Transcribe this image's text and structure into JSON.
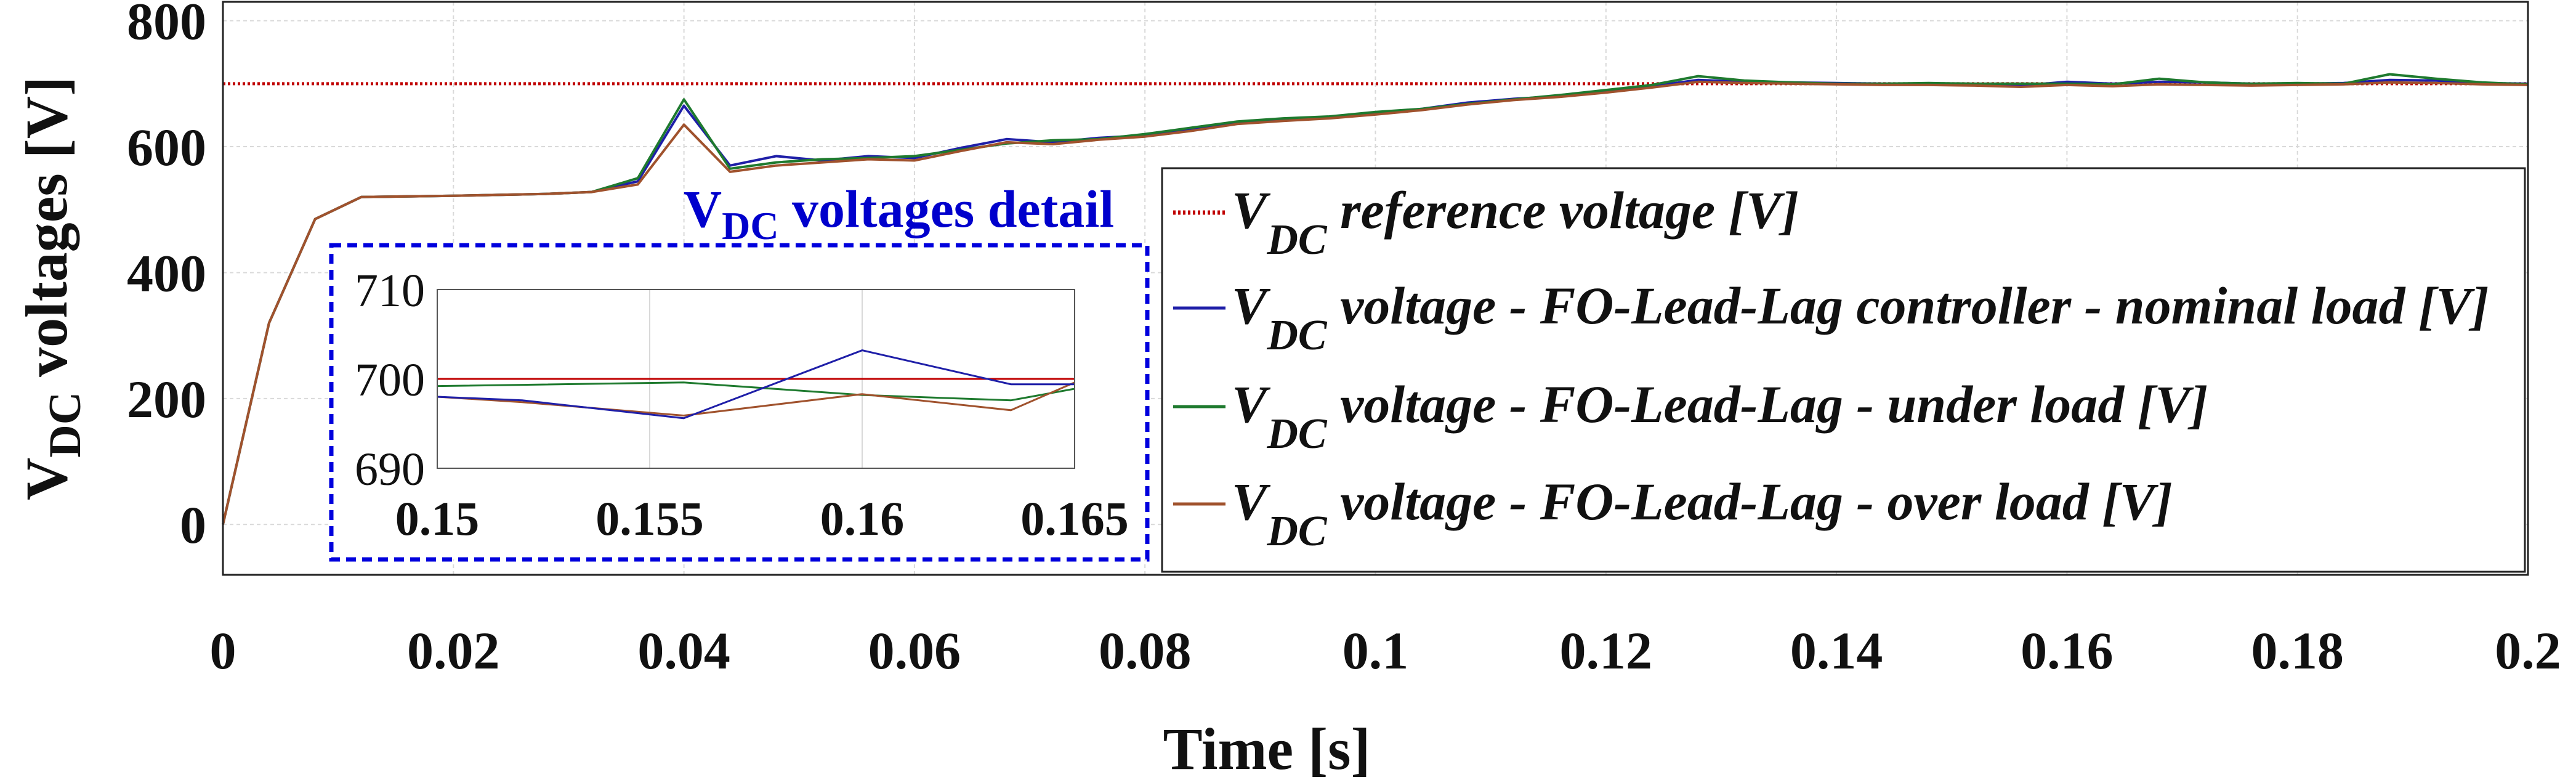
{
  "colors": {
    "reference": "#c00000",
    "nominal": "#1f1fa8",
    "under": "#1e7a2e",
    "over": "#a0522d",
    "inset_frame": "#0000dd",
    "inset_title": "#0000cc",
    "grid": "#d9d9d9",
    "text": "#111111"
  },
  "chart_data": [
    {
      "id": "main",
      "type": "line",
      "xlabel": "Time [s]",
      "ylabel_main": "V",
      "ylabel_sub": "DC",
      "ylabel_rest": " voltages [V]",
      "xlim": [
        0,
        0.2
      ],
      "ylim": [
        -80,
        830
      ],
      "xticks": [
        0,
        0.02,
        0.04,
        0.06,
        0.08,
        0.1,
        0.12,
        0.14,
        0.16,
        0.18,
        0.2
      ],
      "xtick_labels": [
        "0",
        "0.02",
        "0.04",
        "0.06",
        "0.08",
        "0.1",
        "0.12",
        "0.14",
        "0.16",
        "0.18",
        "0.2"
      ],
      "yticks": [
        0,
        200,
        400,
        600,
        800
      ],
      "ytick_labels": [
        "0",
        "200",
        "400",
        "600",
        "800"
      ],
      "grid": true,
      "legend_position": "center-right",
      "series": [
        {
          "key": "reference",
          "legend_sub": "DC",
          "legend_text": " reference voltage [V]",
          "style": "dotted",
          "x": [
            0,
            0.2
          ],
          "y": [
            700,
            700
          ]
        },
        {
          "key": "nominal",
          "legend_sub": "DC",
          "legend_text": " voltage - FO-Lead-Lag controller - nominal load  [V]",
          "style": "solid",
          "x": [
            0,
            0.004,
            0.008,
            0.012,
            0.02,
            0.028,
            0.032,
            0.036,
            0.04,
            0.044,
            0.048,
            0.052,
            0.056,
            0.06,
            0.064,
            0.068,
            0.072,
            0.076,
            0.08,
            0.084,
            0.088,
            0.092,
            0.096,
            0.1,
            0.104,
            0.108,
            0.112,
            0.116,
            0.12,
            0.124,
            0.128,
            0.132,
            0.136,
            0.14,
            0.144,
            0.148,
            0.152,
            0.156,
            0.16,
            0.164,
            0.168,
            0.172,
            0.176,
            0.18,
            0.184,
            0.188,
            0.192,
            0.196,
            0.2
          ],
          "y": [
            0,
            320,
            485,
            520,
            522,
            525,
            528,
            545,
            665,
            570,
            585,
            578,
            585,
            582,
            598,
            612,
            607,
            614,
            618,
            627,
            638,
            643,
            647,
            653,
            660,
            670,
            676,
            680,
            688,
            696,
            706,
            703,
            702,
            701,
            700,
            700,
            699,
            697,
            703,
            700,
            703,
            702,
            700,
            700,
            701,
            706,
            705,
            701,
            700
          ]
        },
        {
          "key": "under",
          "legend_sub": "DC",
          "legend_text": " voltage - FO-Lead-Lag - under load  [V]",
          "style": "solid",
          "x": [
            0,
            0.004,
            0.008,
            0.012,
            0.02,
            0.028,
            0.032,
            0.036,
            0.04,
            0.044,
            0.048,
            0.052,
            0.056,
            0.06,
            0.064,
            0.068,
            0.072,
            0.076,
            0.08,
            0.084,
            0.088,
            0.092,
            0.096,
            0.1,
            0.104,
            0.108,
            0.112,
            0.116,
            0.12,
            0.124,
            0.128,
            0.132,
            0.136,
            0.14,
            0.144,
            0.148,
            0.152,
            0.156,
            0.16,
            0.164,
            0.168,
            0.172,
            0.176,
            0.18,
            0.184,
            0.188,
            0.192,
            0.196,
            0.2
          ],
          "y": [
            0,
            320,
            485,
            520,
            522,
            525,
            528,
            550,
            675,
            565,
            575,
            580,
            582,
            585,
            595,
            605,
            610,
            612,
            620,
            630,
            640,
            645,
            648,
            655,
            660,
            668,
            675,
            682,
            690,
            698,
            712,
            705,
            702,
            700,
            700,
            701,
            700,
            700,
            700,
            699,
            708,
            702,
            700,
            701,
            700,
            715,
            708,
            702,
            699
          ]
        },
        {
          "key": "over",
          "legend_sub": "DC",
          "legend_text": " voltage - FO-Lead-Lag - over load  [V]",
          "style": "solid",
          "x": [
            0,
            0.004,
            0.008,
            0.012,
            0.02,
            0.028,
            0.032,
            0.036,
            0.04,
            0.044,
            0.048,
            0.052,
            0.056,
            0.06,
            0.064,
            0.068,
            0.072,
            0.076,
            0.08,
            0.084,
            0.088,
            0.092,
            0.096,
            0.1,
            0.104,
            0.108,
            0.112,
            0.116,
            0.12,
            0.124,
            0.128,
            0.132,
            0.136,
            0.14,
            0.144,
            0.148,
            0.152,
            0.156,
            0.16,
            0.164,
            0.168,
            0.172,
            0.176,
            0.18,
            0.184,
            0.188,
            0.192,
            0.196,
            0.2
          ],
          "y": [
            0,
            320,
            485,
            520,
            522,
            525,
            528,
            540,
            635,
            560,
            570,
            575,
            580,
            578,
            593,
            607,
            604,
            611,
            616,
            625,
            636,
            641,
            645,
            651,
            658,
            667,
            674,
            679,
            686,
            694,
            703,
            701,
            700,
            699,
            698,
            698,
            697,
            695,
            698,
            696,
            699,
            698,
            697,
            698,
            699,
            702,
            701,
            699,
            698
          ]
        }
      ]
    },
    {
      "id": "inset",
      "type": "line",
      "title_main": "V",
      "title_sub": "DC",
      "title_rest": " voltages detail",
      "xlim": [
        0.15,
        0.165
      ],
      "ylim": [
        690,
        710
      ],
      "xticks": [
        0.15,
        0.155,
        0.16,
        0.165
      ],
      "xtick_labels": [
        "0.15",
        "0.155",
        "0.16",
        "0.165"
      ],
      "yticks": [
        690,
        700,
        710
      ],
      "ytick_labels": [
        "690",
        "700",
        "710"
      ],
      "grid": true,
      "series": [
        {
          "key": "reference",
          "x": [
            0.15,
            0.165
          ],
          "y": [
            700,
            700
          ]
        },
        {
          "key": "nominal",
          "x": [
            0.15,
            0.152,
            0.1558,
            0.16,
            0.1635,
            0.165
          ],
          "y": [
            698,
            697.6,
            695.6,
            703.2,
            699.4,
            699.4
          ]
        },
        {
          "key": "under",
          "x": [
            0.15,
            0.1558,
            0.16,
            0.1635,
            0.165
          ],
          "y": [
            699.2,
            699.6,
            698.2,
            697.6,
            698.9
          ]
        },
        {
          "key": "over",
          "x": [
            0.15,
            0.152,
            0.1558,
            0.16,
            0.1635,
            0.165
          ],
          "y": [
            698,
            697.4,
            695.9,
            698.3,
            696.5,
            699.6
          ]
        }
      ]
    }
  ]
}
